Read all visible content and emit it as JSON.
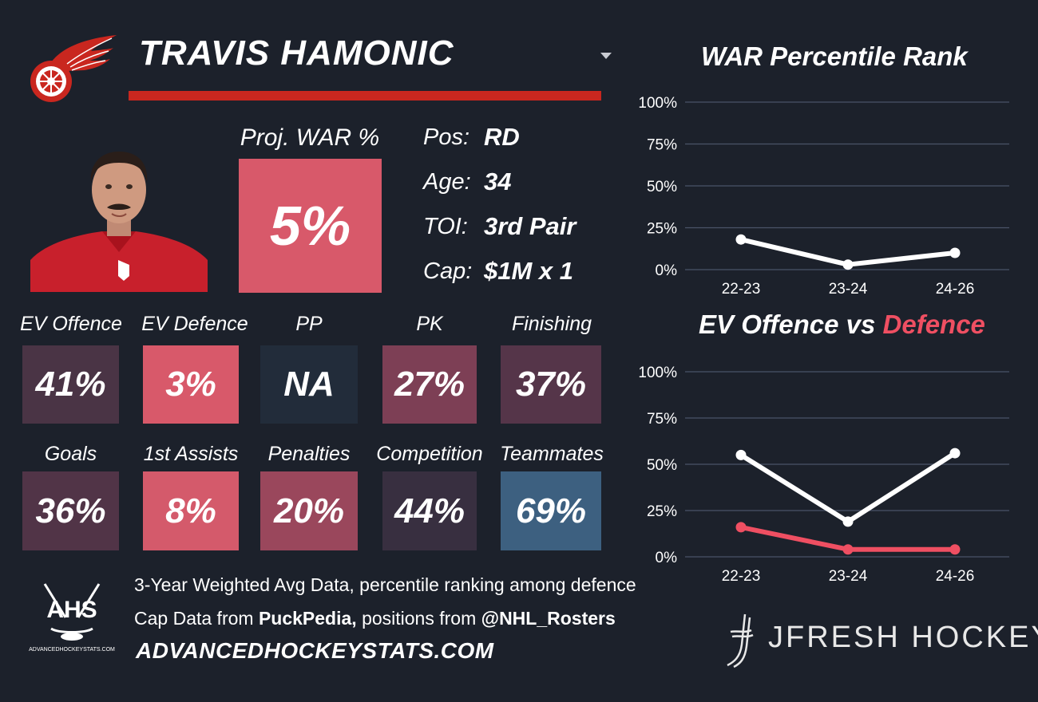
{
  "header": {
    "player_name": "TRAVIS HAMONIC",
    "team_logo_icon": "red-wings-winged-wheel-icon",
    "dropdown_icon": "chevron-down-icon",
    "accent_color": "#c9271f"
  },
  "projection": {
    "label": "Proj. WAR %",
    "value": "5%",
    "color": "#d8596a"
  },
  "info": [
    {
      "label": "Pos:",
      "value": "RD"
    },
    {
      "label": "Age:",
      "value": "34"
    },
    {
      "label": "TOI:",
      "value": "3rd Pair"
    },
    {
      "label": "Cap:",
      "value": "$1M x 1"
    }
  ],
  "tiles_row1": [
    {
      "label": "EV Offence",
      "value": "41%",
      "color": "#4a3445"
    },
    {
      "label": "EV Defence",
      "value": "3%",
      "color": "#d8596a"
    },
    {
      "label": "PP",
      "value": "NA",
      "color": "#222c3a"
    },
    {
      "label": "PK",
      "value": "27%",
      "color": "#7d3f55"
    },
    {
      "label": "Finishing",
      "value": "37%",
      "color": "#553549"
    }
  ],
  "tiles_row2": [
    {
      "label": "Goals",
      "value": "36%",
      "color": "#513447"
    },
    {
      "label": "1st Assists",
      "value": "8%",
      "color": "#d45a6b"
    },
    {
      "label": "Penalties",
      "value": "20%",
      "color": "#9a475c"
    },
    {
      "label": "Competition",
      "value": "44%",
      "color": "#382f40"
    },
    {
      "label": "Teammates",
      "value": "69%",
      "color": "#3d6080"
    }
  ],
  "footer": {
    "line1": "3-Year Weighted Avg Data, percentile ranking among defence",
    "line2_prefix": "Cap Data from ",
    "line2_bold1": "PuckPedia,",
    "line2_mid": " positions from ",
    "line2_bold2": "@NHL_Rosters",
    "site": "ADVANCEDHOCKEYSTATS.COM",
    "ahs_logo_text": "AHS",
    "ahs_logo_sub": "ADVANCEDHOCKEYSTATS.COM",
    "brand": "JFRESH HOCKEY"
  },
  "chart_data": [
    {
      "type": "line",
      "title": "WAR Percentile Rank",
      "categories": [
        "22-23",
        "23-24",
        "24-26"
      ],
      "y_ticks": [
        "100%",
        "75%",
        "50%",
        "25%",
        "0%"
      ],
      "ylim": [
        0,
        100
      ],
      "grid": true,
      "series": [
        {
          "values": [
            18,
            3,
            10
          ],
          "color": "#ffffff"
        }
      ]
    },
    {
      "type": "line",
      "title_part1": "EV Offence vs ",
      "title_part2": "Defence",
      "title_part2_color": "#ef4f62",
      "categories": [
        "22-23",
        "23-24",
        "24-26"
      ],
      "y_ticks": [
        "100%",
        "75%",
        "50%",
        "25%",
        "0%"
      ],
      "ylim": [
        0,
        100
      ],
      "grid": true,
      "series": [
        {
          "values": [
            55,
            19,
            56
          ],
          "color": "#ffffff"
        },
        {
          "values": [
            16,
            4,
            4
          ],
          "color": "#ef4f62"
        }
      ]
    }
  ]
}
